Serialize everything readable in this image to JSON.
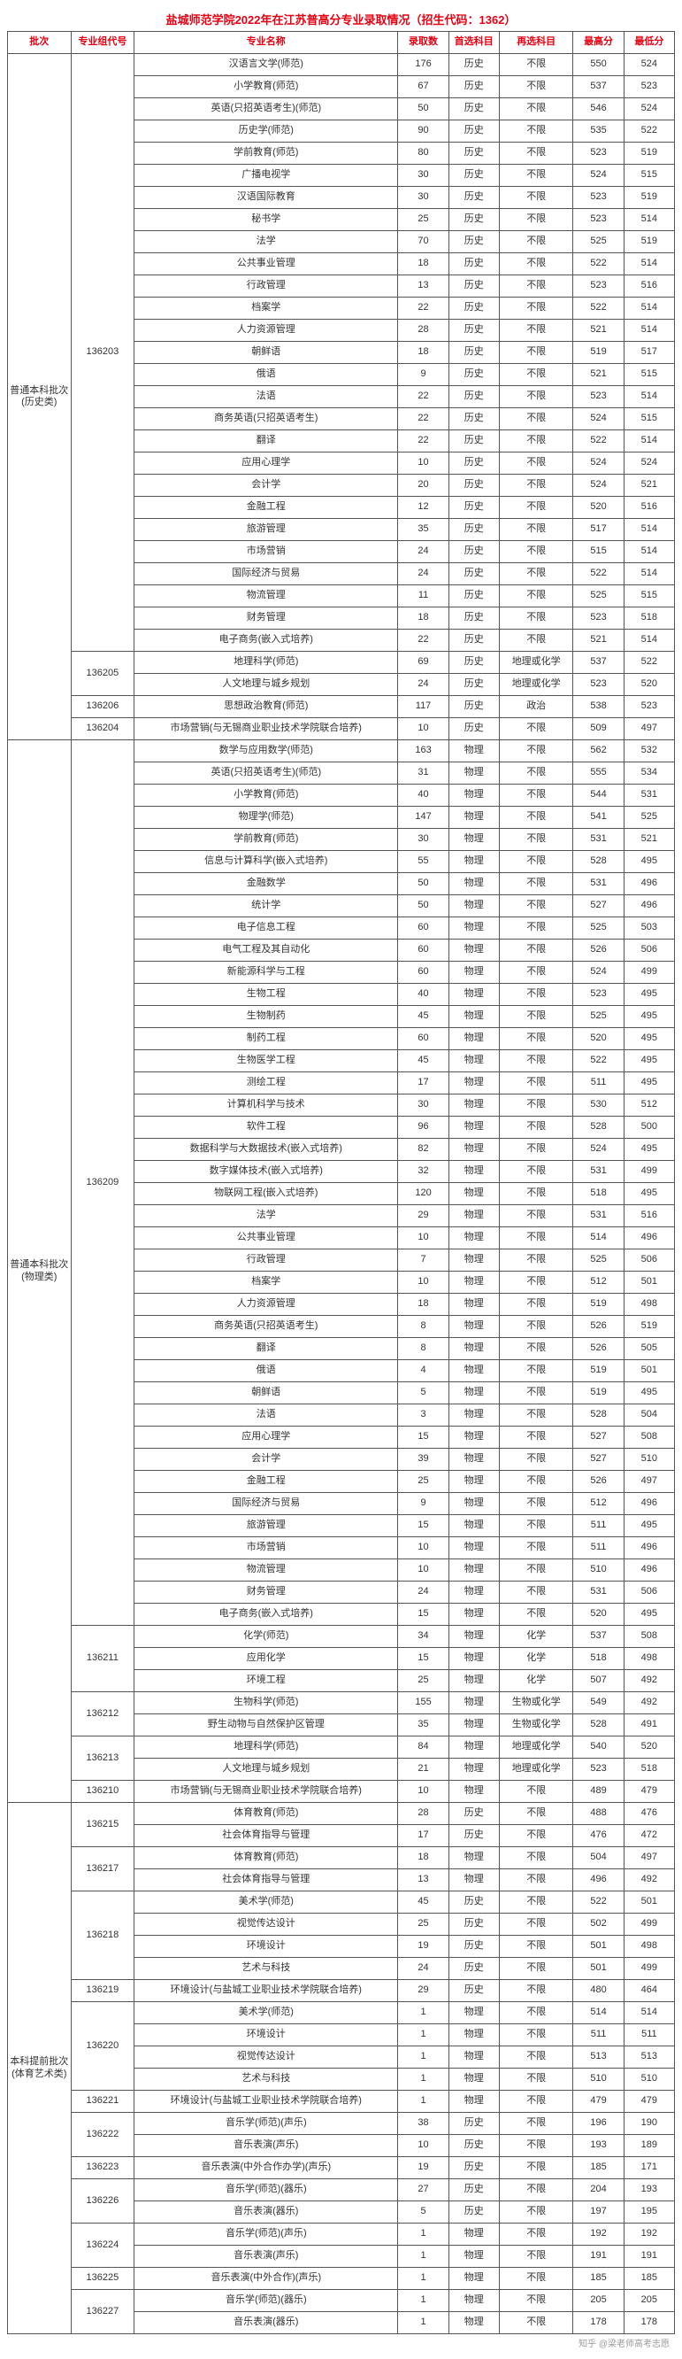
{
  "title": "盐城师范学院2022年在江苏普高分专业录取情况（招生代码：1362）",
  "columns": [
    "批次",
    "专业组代号",
    "专业名称",
    "录取数",
    "首选科目",
    "再选科目",
    "最高分",
    "最低分"
  ],
  "header_color": "#e60012",
  "border_color": "#555555",
  "batches": [
    {
      "batch_label": "普通本科批次\n(历史类)",
      "groups": [
        {
          "code": "136203",
          "rows": [
            [
              "汉语言文学(师范)",
              "176",
              "历史",
              "不限",
              "550",
              "524"
            ],
            [
              "小学教育(师范)",
              "67",
              "历史",
              "不限",
              "537",
              "523"
            ],
            [
              "英语(只招英语考生)(师范)",
              "50",
              "历史",
              "不限",
              "546",
              "524"
            ],
            [
              "历史学(师范)",
              "90",
              "历史",
              "不限",
              "535",
              "522"
            ],
            [
              "学前教育(师范)",
              "80",
              "历史",
              "不限",
              "523",
              "519"
            ],
            [
              "广播电视学",
              "30",
              "历史",
              "不限",
              "524",
              "515"
            ],
            [
              "汉语国际教育",
              "30",
              "历史",
              "不限",
              "523",
              "519"
            ],
            [
              "秘书学",
              "25",
              "历史",
              "不限",
              "523",
              "514"
            ],
            [
              "法学",
              "70",
              "历史",
              "不限",
              "525",
              "519"
            ],
            [
              "公共事业管理",
              "18",
              "历史",
              "不限",
              "522",
              "514"
            ],
            [
              "行政管理",
              "13",
              "历史",
              "不限",
              "523",
              "516"
            ],
            [
              "档案学",
              "22",
              "历史",
              "不限",
              "522",
              "514"
            ],
            [
              "人力资源管理",
              "28",
              "历史",
              "不限",
              "521",
              "514"
            ],
            [
              "朝鲜语",
              "18",
              "历史",
              "不限",
              "519",
              "517"
            ],
            [
              "俄语",
              "9",
              "历史",
              "不限",
              "521",
              "515"
            ],
            [
              "法语",
              "22",
              "历史",
              "不限",
              "523",
              "514"
            ],
            [
              "商务英语(只招英语考生)",
              "22",
              "历史",
              "不限",
              "524",
              "515"
            ],
            [
              "翻译",
              "22",
              "历史",
              "不限",
              "522",
              "514"
            ],
            [
              "应用心理学",
              "10",
              "历史",
              "不限",
              "524",
              "524"
            ],
            [
              "会计学",
              "20",
              "历史",
              "不限",
              "524",
              "521"
            ],
            [
              "金融工程",
              "12",
              "历史",
              "不限",
              "520",
              "516"
            ],
            [
              "旅游管理",
              "35",
              "历史",
              "不限",
              "517",
              "514"
            ],
            [
              "市场营销",
              "24",
              "历史",
              "不限",
              "515",
              "514"
            ],
            [
              "国际经济与贸易",
              "24",
              "历史",
              "不限",
              "522",
              "514"
            ],
            [
              "物流管理",
              "11",
              "历史",
              "不限",
              "525",
              "515"
            ],
            [
              "财务管理",
              "18",
              "历史",
              "不限",
              "523",
              "518"
            ],
            [
              "电子商务(嵌入式培养)",
              "22",
              "历史",
              "不限",
              "521",
              "514"
            ]
          ]
        },
        {
          "code": "136205",
          "rows": [
            [
              "地理科学(师范)",
              "69",
              "历史",
              "地理或化学",
              "537",
              "522"
            ],
            [
              "人文地理与城乡规划",
              "24",
              "历史",
              "地理或化学",
              "523",
              "520"
            ]
          ]
        },
        {
          "code": "136206",
          "rows": [
            [
              "思想政治教育(师范)",
              "117",
              "历史",
              "政治",
              "538",
              "523"
            ]
          ]
        },
        {
          "code": "136204",
          "rows": [
            [
              "市场营销(与无锡商业职业技术学院联合培养)",
              "10",
              "历史",
              "不限",
              "509",
              "497"
            ]
          ]
        }
      ]
    },
    {
      "batch_label": "普通本科批次\n(物理类)",
      "groups": [
        {
          "code": "136209",
          "rows": [
            [
              "数学与应用数学(师范)",
              "163",
              "物理",
              "不限",
              "562",
              "532"
            ],
            [
              "英语(只招英语考生)(师范)",
              "31",
              "物理",
              "不限",
              "555",
              "534"
            ],
            [
              "小学教育(师范)",
              "40",
              "物理",
              "不限",
              "544",
              "531"
            ],
            [
              "物理学(师范)",
              "147",
              "物理",
              "不限",
              "541",
              "525"
            ],
            [
              "学前教育(师范)",
              "30",
              "物理",
              "不限",
              "531",
              "521"
            ],
            [
              "信息与计算科学(嵌入式培养)",
              "55",
              "物理",
              "不限",
              "528",
              "495"
            ],
            [
              "金融数学",
              "50",
              "物理",
              "不限",
              "531",
              "496"
            ],
            [
              "统计学",
              "50",
              "物理",
              "不限",
              "527",
              "496"
            ],
            [
              "电子信息工程",
              "60",
              "物理",
              "不限",
              "525",
              "503"
            ],
            [
              "电气工程及其自动化",
              "60",
              "物理",
              "不限",
              "526",
              "506"
            ],
            [
              "新能源科学与工程",
              "60",
              "物理",
              "不限",
              "524",
              "499"
            ],
            [
              "生物工程",
              "40",
              "物理",
              "不限",
              "523",
              "495"
            ],
            [
              "生物制药",
              "45",
              "物理",
              "不限",
              "525",
              "495"
            ],
            [
              "制药工程",
              "60",
              "物理",
              "不限",
              "520",
              "495"
            ],
            [
              "生物医学工程",
              "45",
              "物理",
              "不限",
              "522",
              "495"
            ],
            [
              "测绘工程",
              "17",
              "物理",
              "不限",
              "511",
              "495"
            ],
            [
              "计算机科学与技术",
              "30",
              "物理",
              "不限",
              "530",
              "512"
            ],
            [
              "软件工程",
              "96",
              "物理",
              "不限",
              "528",
              "500"
            ],
            [
              "数据科学与大数据技术(嵌入式培养)",
              "82",
              "物理",
              "不限",
              "524",
              "495"
            ],
            [
              "数字媒体技术(嵌入式培养)",
              "32",
              "物理",
              "不限",
              "531",
              "499"
            ],
            [
              "物联网工程(嵌入式培养)",
              "120",
              "物理",
              "不限",
              "518",
              "495"
            ],
            [
              "法学",
              "29",
              "物理",
              "不限",
              "531",
              "516"
            ],
            [
              "公共事业管理",
              "10",
              "物理",
              "不限",
              "514",
              "496"
            ],
            [
              "行政管理",
              "7",
              "物理",
              "不限",
              "525",
              "506"
            ],
            [
              "档案学",
              "10",
              "物理",
              "不限",
              "512",
              "501"
            ],
            [
              "人力资源管理",
              "18",
              "物理",
              "不限",
              "519",
              "498"
            ],
            [
              "商务英语(只招英语考生)",
              "8",
              "物理",
              "不限",
              "526",
              "519"
            ],
            [
              "翻译",
              "8",
              "物理",
              "不限",
              "526",
              "505"
            ],
            [
              "俄语",
              "4",
              "物理",
              "不限",
              "519",
              "501"
            ],
            [
              "朝鲜语",
              "5",
              "物理",
              "不限",
              "519",
              "495"
            ],
            [
              "法语",
              "3",
              "物理",
              "不限",
              "528",
              "504"
            ],
            [
              "应用心理学",
              "15",
              "物理",
              "不限",
              "527",
              "508"
            ],
            [
              "会计学",
              "39",
              "物理",
              "不限",
              "527",
              "510"
            ],
            [
              "金融工程",
              "25",
              "物理",
              "不限",
              "526",
              "497"
            ],
            [
              "国际经济与贸易",
              "9",
              "物理",
              "不限",
              "512",
              "496"
            ],
            [
              "旅游管理",
              "15",
              "物理",
              "不限",
              "511",
              "495"
            ],
            [
              "市场营销",
              "10",
              "物理",
              "不限",
              "511",
              "496"
            ],
            [
              "物流管理",
              "10",
              "物理",
              "不限",
              "510",
              "496"
            ],
            [
              "财务管理",
              "24",
              "物理",
              "不限",
              "531",
              "506"
            ],
            [
              "电子商务(嵌入式培养)",
              "15",
              "物理",
              "不限",
              "520",
              "495"
            ]
          ]
        },
        {
          "code": "136211",
          "rows": [
            [
              "化学(师范)",
              "34",
              "物理",
              "化学",
              "537",
              "508"
            ],
            [
              "应用化学",
              "15",
              "物理",
              "化学",
              "518",
              "498"
            ],
            [
              "环境工程",
              "25",
              "物理",
              "化学",
              "507",
              "492"
            ]
          ]
        },
        {
          "code": "136212",
          "rows": [
            [
              "生物科学(师范)",
              "155",
              "物理",
              "生物或化学",
              "549",
              "492"
            ],
            [
              "野生动物与自然保护区管理",
              "35",
              "物理",
              "生物或化学",
              "528",
              "491"
            ]
          ]
        },
        {
          "code": "136213",
          "rows": [
            [
              "地理科学(师范)",
              "84",
              "物理",
              "地理或化学",
              "540",
              "520"
            ],
            [
              "人文地理与城乡规划",
              "21",
              "物理",
              "地理或化学",
              "523",
              "518"
            ]
          ]
        },
        {
          "code": "136210",
          "rows": [
            [
              "市场营销(与无锡商业职业技术学院联合培养)",
              "10",
              "物理",
              "不限",
              "489",
              "479"
            ]
          ]
        }
      ]
    },
    {
      "batch_label": "本科提前批次\n(体育艺术类)",
      "groups": [
        {
          "code": "136215",
          "rows": [
            [
              "体育教育(师范)",
              "28",
              "历史",
              "不限",
              "488",
              "476"
            ],
            [
              "社会体育指导与管理",
              "17",
              "历史",
              "不限",
              "476",
              "472"
            ]
          ]
        },
        {
          "code": "136217",
          "rows": [
            [
              "体育教育(师范)",
              "18",
              "物理",
              "不限",
              "504",
              "497"
            ],
            [
              "社会体育指导与管理",
              "13",
              "物理",
              "不限",
              "496",
              "492"
            ]
          ]
        },
        {
          "code": "136218",
          "rows": [
            [
              "美术学(师范)",
              "45",
              "历史",
              "不限",
              "522",
              "501"
            ],
            [
              "视觉传达设计",
              "25",
              "历史",
              "不限",
              "502",
              "499"
            ],
            [
              "环境设计",
              "19",
              "历史",
              "不限",
              "501",
              "498"
            ],
            [
              "艺术与科技",
              "24",
              "历史",
              "不限",
              "501",
              "499"
            ]
          ]
        },
        {
          "code": "136219",
          "rows": [
            [
              "环境设计(与盐城工业职业技术学院联合培养)",
              "29",
              "历史",
              "不限",
              "480",
              "464"
            ]
          ]
        },
        {
          "code": "136220",
          "rows": [
            [
              "美术学(师范)",
              "1",
              "物理",
              "不限",
              "514",
              "514"
            ],
            [
              "环境设计",
              "1",
              "物理",
              "不限",
              "511",
              "511"
            ],
            [
              "视觉传达设计",
              "1",
              "物理",
              "不限",
              "513",
              "513"
            ],
            [
              "艺术与科技",
              "1",
              "物理",
              "不限",
              "510",
              "510"
            ]
          ]
        },
        {
          "code": "136221",
          "rows": [
            [
              "环境设计(与盐城工业职业技术学院联合培养)",
              "1",
              "物理",
              "不限",
              "479",
              "479"
            ]
          ]
        },
        {
          "code": "136222",
          "rows": [
            [
              "音乐学(师范)(声乐)",
              "38",
              "历史",
              "不限",
              "196",
              "190"
            ],
            [
              "音乐表演(声乐)",
              "10",
              "历史",
              "不限",
              "193",
              "189"
            ]
          ]
        },
        {
          "code": "136223",
          "rows": [
            [
              "音乐表演(中外合作办学)(声乐)",
              "19",
              "历史",
              "不限",
              "185",
              "171"
            ]
          ]
        },
        {
          "code": "136226",
          "rows": [
            [
              "音乐学(师范)(器乐)",
              "27",
              "历史",
              "不限",
              "204",
              "193"
            ],
            [
              "音乐表演(器乐)",
              "5",
              "历史",
              "不限",
              "197",
              "195"
            ]
          ]
        },
        {
          "code": "136224",
          "rows": [
            [
              "音乐学(师范)(声乐)",
              "1",
              "物理",
              "不限",
              "192",
              "192"
            ],
            [
              "音乐表演(声乐)",
              "1",
              "物理",
              "不限",
              "191",
              "191"
            ]
          ]
        },
        {
          "code": "136225",
          "rows": [
            [
              "音乐表演(中外合作)(声乐)",
              "1",
              "物理",
              "不限",
              "185",
              "185"
            ]
          ]
        },
        {
          "code": "136227",
          "rows": [
            [
              "音乐学(师范)(器乐)",
              "1",
              "物理",
              "不限",
              "205",
              "205"
            ],
            [
              "音乐表演(器乐)",
              "1",
              "物理",
              "不限",
              "178",
              "178"
            ]
          ]
        }
      ]
    }
  ],
  "footer": "知乎 @梁老师高考志愿"
}
